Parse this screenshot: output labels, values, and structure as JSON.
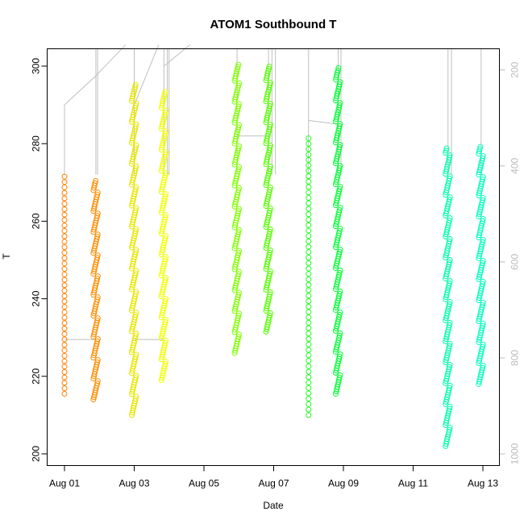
{
  "chart_data": {
    "type": "scatter",
    "title": "ATOM1 Southbound T",
    "xlabel": "Date",
    "ylabel": "T",
    "xlim": [
      0,
      12.45
    ],
    "ylim": [
      198,
      305.5
    ],
    "x_ticks": [
      {
        "value": 0,
        "label": "Aug 01"
      },
      {
        "value": 2,
        "label": "Aug 03"
      },
      {
        "value": 4,
        "label": "Aug 05"
      },
      {
        "value": 6,
        "label": "Aug 07"
      },
      {
        "value": 8,
        "label": "Aug 09"
      },
      {
        "value": 10,
        "label": "Aug 11"
      },
      {
        "value": 12,
        "label": "Aug 13"
      }
    ],
    "y_ticks": [
      200,
      220,
      240,
      260,
      280,
      300
    ],
    "secondary_axis": {
      "side": "right",
      "label": "",
      "color": "#bbbbbb",
      "reversed": true,
      "ticks": [
        200,
        400,
        600,
        800,
        1000
      ],
      "map_primary": [
        300,
        200
      ],
      "map_secondary": [
        192,
        1000
      ]
    },
    "grid": false,
    "pressure_trace_color": "#bfbfbf",
    "profiles": [
      {
        "x": 0.0,
        "ymin": 215.5,
        "ymax": 272.0,
        "color": "#FF8000",
        "dense": false
      },
      {
        "x": 0.9,
        "ymin": 214.0,
        "ymax": 271.0,
        "color": "#FF8C00",
        "dense": true
      },
      {
        "x": 2.0,
        "ymin": 210.0,
        "ymax": 295.5,
        "color": "#E6E600",
        "dense": true
      },
      {
        "x": 2.85,
        "ymin": 219.0,
        "ymax": 294.0,
        "color": "#EEFF00",
        "dense": true
      },
      {
        "x": 4.95,
        "ymin": 226.0,
        "ymax": 301.0,
        "color": "#80FF00",
        "dense": true
      },
      {
        "x": 5.85,
        "ymin": 231.5,
        "ymax": 300.0,
        "color": "#55FF00",
        "dense": true
      },
      {
        "x": 7.0,
        "ymin": 210.0,
        "ymax": 282.0,
        "color": "#22FF22",
        "dense": false
      },
      {
        "x": 7.85,
        "ymin": 215.5,
        "ymax": 300.0,
        "color": "#00FF33",
        "dense": true
      },
      {
        "x": 11.0,
        "ymin": 202.0,
        "ymax": 279.0,
        "color": "#00FFAA",
        "dense": true
      },
      {
        "x": 11.95,
        "ymin": 218.0,
        "ymax": 279.5,
        "color": "#00FFBB",
        "dense": true
      }
    ]
  }
}
